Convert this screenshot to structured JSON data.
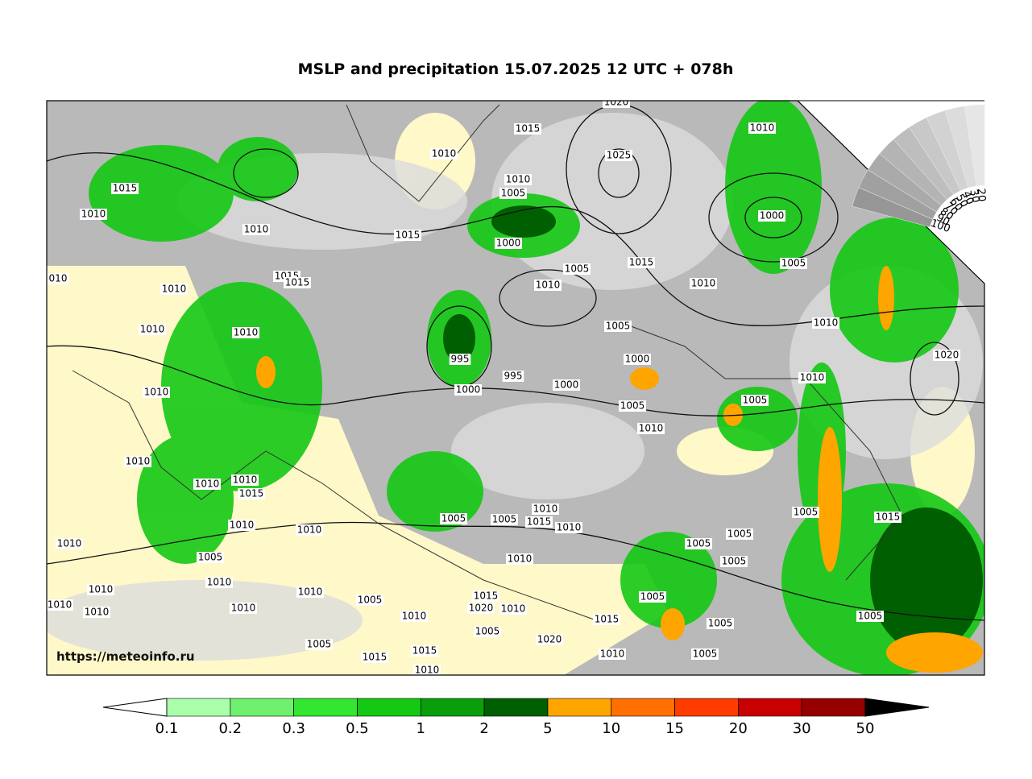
{
  "title": "MSLP and precipitation 15.07.2025 12 UTC + 078h",
  "watermark": "https://meteoinfo.ru",
  "colorbar": {
    "labels": [
      0.1,
      0.2,
      0.3,
      0.5,
      1,
      2,
      5,
      10,
      15,
      20,
      30,
      50
    ],
    "colors": [
      "#aaffaa",
      "#6ef06e",
      "#32e632",
      "#14c814",
      "#0a9e0a",
      "#005f00",
      "#ffa500",
      "#ff7000",
      "#ff3c00",
      "#c80000",
      "#960000"
    ]
  },
  "cloud_scale": {
    "labels": [
      100,
      90,
      80,
      70,
      60,
      50,
      40,
      30,
      20
    ]
  },
  "isobar_labels": [
    "1010",
    "1015",
    "1020",
    "1025",
    "1010",
    "1015",
    "1010",
    "1010",
    "1015",
    "1010",
    "1005",
    "1000",
    "1000",
    "1005",
    "1015",
    "1005",
    "1010",
    "1010",
    "1015",
    "1015",
    "1010",
    "010",
    "1010",
    "1010",
    "1005",
    "1010",
    "1000",
    "995",
    "995",
    "1000",
    "1000",
    "1020",
    "1010",
    "1005",
    "1010",
    "1005",
    "1010",
    "1010",
    "1010",
    "1010",
    "1015",
    "1005",
    "1005",
    "1010",
    "1015",
    "1010",
    "1010",
    "1010",
    "1005",
    "1015",
    "1005",
    "1005",
    "1010",
    "1005",
    "1010",
    "1005",
    "1010",
    "1010",
    "1010",
    "1010",
    "1010",
    "1010",
    "1005",
    "1015",
    "1020",
    "1010",
    "1010",
    "1005",
    "1015",
    "1005",
    "1005",
    "1005",
    "1020",
    "1005",
    "1015",
    "1015",
    "1010",
    "1005",
    "1010"
  ]
}
